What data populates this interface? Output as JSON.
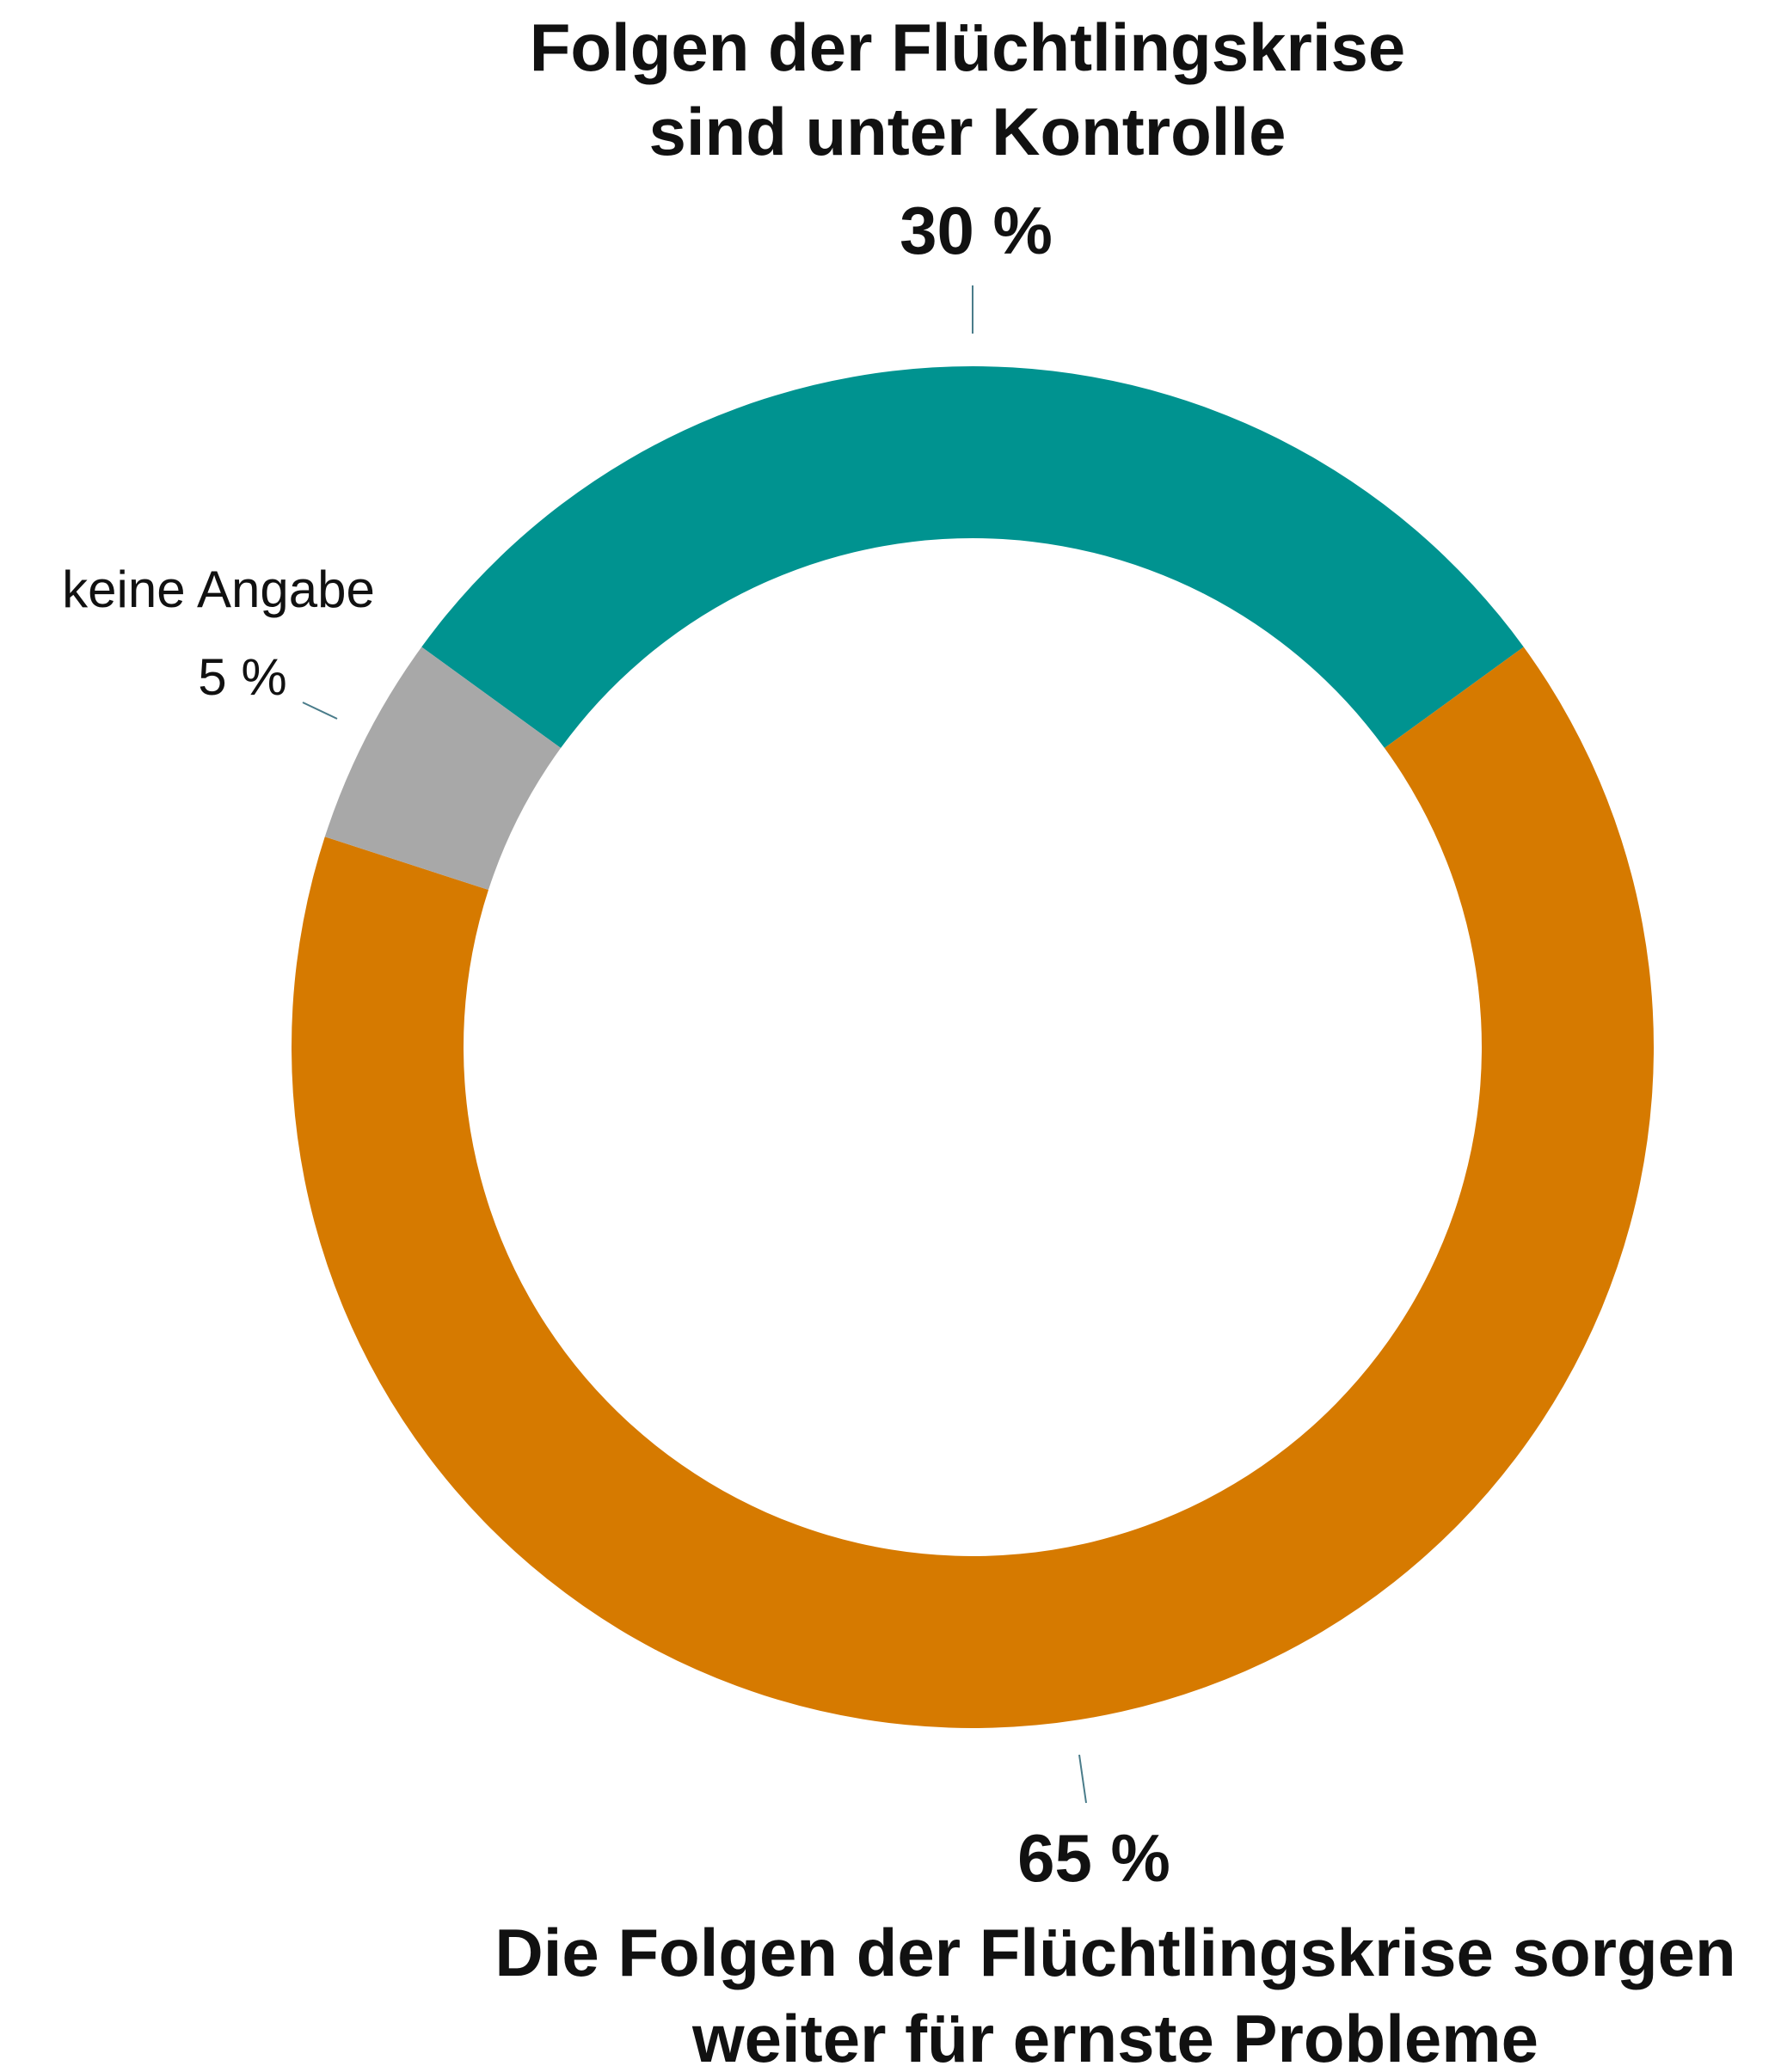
{
  "chart_data": {
    "type": "pie",
    "title": "",
    "slices": [
      {
        "label_lines": [
          "Folgen der Flüchtlingskrise",
          "sind unter Kontrolle"
        ],
        "value": 30,
        "value_label": "30 %",
        "color": "#009390"
      },
      {
        "label_lines": [
          "Die Folgen der Flüchtlingskrise sorgen",
          "weiter für ernste Probleme"
        ],
        "value": 65,
        "value_label": "65 %",
        "color": "#d67a00"
      },
      {
        "label_lines": [
          "keine Angabe"
        ],
        "value": 5,
        "value_label": "5 %",
        "color": "#a8a8a8"
      }
    ],
    "style": "donut",
    "start": "top, clockwise from first slice"
  }
}
